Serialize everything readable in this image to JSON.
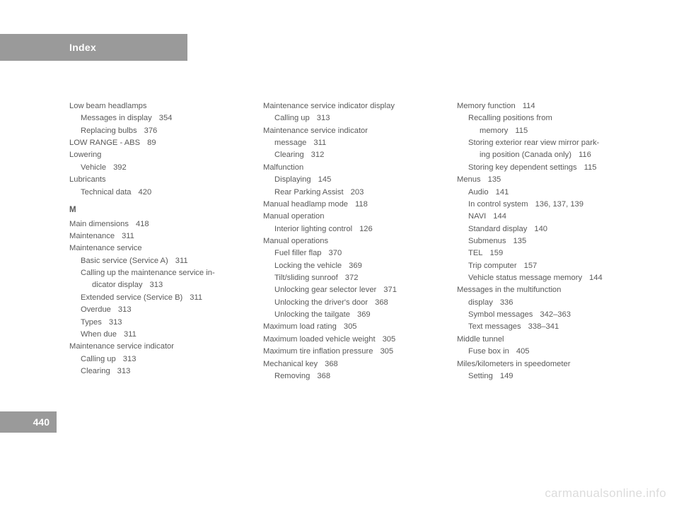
{
  "header": {
    "title": "Index"
  },
  "pageNumber": "440",
  "watermark": "carmanualsonline.info",
  "columns": [
    [
      {
        "lvl": 0,
        "text": "Low beam headlamps",
        "pg": ""
      },
      {
        "lvl": 1,
        "text": "Messages in display",
        "pg": "354"
      },
      {
        "lvl": 1,
        "text": "Replacing bulbs",
        "pg": "376"
      },
      {
        "lvl": 0,
        "text": "LOW RANGE - ABS",
        "pg": "89"
      },
      {
        "lvl": 0,
        "text": "Lowering",
        "pg": ""
      },
      {
        "lvl": 1,
        "text": "Vehicle",
        "pg": "392"
      },
      {
        "lvl": 0,
        "text": "Lubricants",
        "pg": ""
      },
      {
        "lvl": 1,
        "text": "Technical data",
        "pg": "420"
      },
      {
        "section": "M"
      },
      {
        "lvl": 0,
        "text": "Main dimensions",
        "pg": "418"
      },
      {
        "lvl": 0,
        "text": "Maintenance",
        "pg": "311"
      },
      {
        "lvl": 0,
        "text": "Maintenance service",
        "pg": ""
      },
      {
        "lvl": 1,
        "text": "Basic service (Service A)",
        "pg": "311"
      },
      {
        "lvl": 1,
        "text": "Calling up the maintenance service in-",
        "pg": ""
      },
      {
        "lvl": 2,
        "text": "dicator display",
        "pg": "313"
      },
      {
        "lvl": 1,
        "text": "Extended service (Service B)",
        "pg": "311"
      },
      {
        "lvl": 1,
        "text": "Overdue",
        "pg": "313"
      },
      {
        "lvl": 1,
        "text": "Types",
        "pg": "313"
      },
      {
        "lvl": 1,
        "text": "When due",
        "pg": "311"
      },
      {
        "lvl": 0,
        "text": "Maintenance service indicator",
        "pg": ""
      },
      {
        "lvl": 1,
        "text": "Calling up",
        "pg": "313"
      },
      {
        "lvl": 1,
        "text": "Clearing",
        "pg": "313"
      }
    ],
    [
      {
        "lvl": 0,
        "text": "Maintenance service indicator display",
        "pg": ""
      },
      {
        "lvl": 1,
        "text": "Calling up",
        "pg": "313"
      },
      {
        "lvl": 0,
        "text": "Maintenance service indicator",
        "pg": ""
      },
      {
        "lvl": 1,
        "text": "message",
        "pg": "311",
        "noIndent": true
      },
      {
        "lvl": 1,
        "text": "Clearing",
        "pg": "312"
      },
      {
        "lvl": 0,
        "text": "Malfunction",
        "pg": ""
      },
      {
        "lvl": 1,
        "text": "Displaying",
        "pg": "145"
      },
      {
        "lvl": 1,
        "text": "Rear Parking Assist",
        "pg": "203"
      },
      {
        "lvl": 0,
        "text": "Manual headlamp mode",
        "pg": "118"
      },
      {
        "lvl": 0,
        "text": "Manual operation",
        "pg": ""
      },
      {
        "lvl": 1,
        "text": "Interior lighting control",
        "pg": "126"
      },
      {
        "lvl": 0,
        "text": "Manual operations",
        "pg": ""
      },
      {
        "lvl": 1,
        "text": "Fuel filler flap",
        "pg": "370"
      },
      {
        "lvl": 1,
        "text": "Locking the vehicle",
        "pg": "369"
      },
      {
        "lvl": 1,
        "text": "Tilt/sliding sunroof",
        "pg": "372"
      },
      {
        "lvl": 1,
        "text": "Unlocking gear selector lever",
        "pg": "371"
      },
      {
        "lvl": 1,
        "text": "Unlocking the driver's door",
        "pg": "368"
      },
      {
        "lvl": 1,
        "text": "Unlocking the tailgate",
        "pg": "369"
      },
      {
        "lvl": 0,
        "text": "Maximum load rating",
        "pg": "305"
      },
      {
        "lvl": 0,
        "text": "Maximum loaded vehicle weight",
        "pg": "305"
      },
      {
        "lvl": 0,
        "text": "Maximum tire inflation pressure",
        "pg": "305"
      },
      {
        "lvl": 0,
        "text": "Mechanical key",
        "pg": "368"
      },
      {
        "lvl": 1,
        "text": "Removing",
        "pg": "368"
      }
    ],
    [
      {
        "lvl": 0,
        "text": "Memory function",
        "pg": "114"
      },
      {
        "lvl": 1,
        "text": "Recalling positions from",
        "pg": ""
      },
      {
        "lvl": 2,
        "text": "memory",
        "pg": "115"
      },
      {
        "lvl": 1,
        "text": "Storing exterior rear view mirror park-",
        "pg": ""
      },
      {
        "lvl": 2,
        "text": "ing position (Canada only)",
        "pg": "116"
      },
      {
        "lvl": 1,
        "text": "Storing key dependent settings",
        "pg": "115"
      },
      {
        "lvl": 0,
        "text": "Menus",
        "pg": "135"
      },
      {
        "lvl": 1,
        "text": "Audio",
        "pg": "141"
      },
      {
        "lvl": 1,
        "text": "In control system",
        "pg": "136, 137, 139"
      },
      {
        "lvl": 1,
        "text": "NAVI",
        "pg": "144"
      },
      {
        "lvl": 1,
        "text": "Standard display",
        "pg": "140"
      },
      {
        "lvl": 1,
        "text": "Submenus",
        "pg": "135"
      },
      {
        "lvl": 1,
        "text": "TEL",
        "pg": "159"
      },
      {
        "lvl": 1,
        "text": "Trip computer",
        "pg": "157"
      },
      {
        "lvl": 1,
        "text": "Vehicle status message memory",
        "pg": "144"
      },
      {
        "lvl": 0,
        "text": "Messages in the multifunction",
        "pg": ""
      },
      {
        "lvl": 1,
        "text": "display",
        "pg": "336",
        "noIndent": true
      },
      {
        "lvl": 1,
        "text": "Symbol messages",
        "pg": "342–363"
      },
      {
        "lvl": 1,
        "text": "Text messages",
        "pg": "338–341"
      },
      {
        "lvl": 0,
        "text": "Middle tunnel",
        "pg": ""
      },
      {
        "lvl": 1,
        "text": "Fuse box in",
        "pg": "405"
      },
      {
        "lvl": 0,
        "text": "Miles/kilometers in speedometer",
        "pg": ""
      },
      {
        "lvl": 1,
        "text": "Setting",
        "pg": "149"
      }
    ]
  ]
}
